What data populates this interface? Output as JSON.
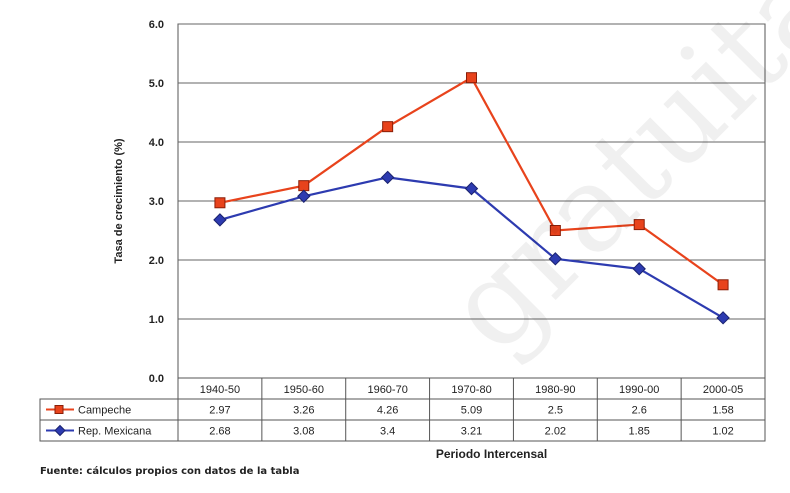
{
  "chart_data": {
    "type": "line",
    "title": "",
    "xlabel": "Periodo Intercensal",
    "ylabel": "Tasa de crecimiento (%)",
    "ylim": [
      0,
      6
    ],
    "yticks": [
      "0.0",
      "1.0",
      "2.0",
      "3.0",
      "4.0",
      "5.0",
      "6.0"
    ],
    "grid": true,
    "categories": [
      "1940-50",
      "1950-60",
      "1960-70",
      "1970-80",
      "1980-90",
      "1990-00",
      "2000-05"
    ],
    "series": [
      {
        "name": "Campeche",
        "color": "#e8431c",
        "marker": "square",
        "values": [
          2.97,
          3.26,
          4.26,
          5.09,
          2.5,
          2.6,
          1.58
        ],
        "labels": [
          "2.97",
          "3.26",
          "4.26",
          "5.09",
          "2.5",
          "2.6",
          "1.58"
        ]
      },
      {
        "name": "Rep. Mexicana",
        "color": "#2d3bb0",
        "marker": "diamond",
        "values": [
          2.68,
          3.08,
          3.4,
          3.21,
          2.02,
          1.85,
          1.02
        ],
        "labels": [
          "2.68",
          "3.08",
          "3.4",
          "3.21",
          "2.02",
          "1.85",
          "1.02"
        ]
      }
    ],
    "legend": "data-table"
  },
  "footer": "Fuente: cálculos propios con datos de la tabla",
  "watermark": "gratuita"
}
